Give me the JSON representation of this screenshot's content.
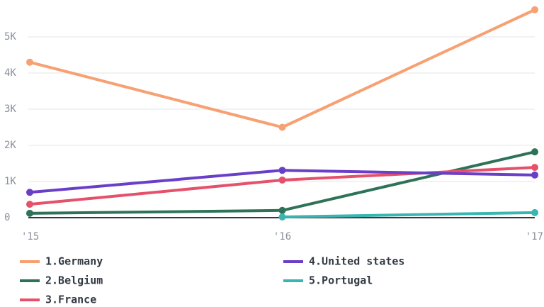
{
  "chart_data": {
    "type": "line",
    "categories": [
      "'15",
      "'16",
      "'17"
    ],
    "series": [
      {
        "name": "1.Germany",
        "color": "#f7a072",
        "values": [
          4300,
          2500,
          5750
        ]
      },
      {
        "name": "2.Belgium",
        "color": "#2e7358",
        "values": [
          120,
          200,
          1820
        ]
      },
      {
        "name": "3.France",
        "color": "#e5506a",
        "values": [
          370,
          1040,
          1390
        ]
      },
      {
        "name": "4.United states",
        "color": "#6a3fc8",
        "values": [
          700,
          1310,
          1180
        ]
      },
      {
        "name": "5.Portugal",
        "color": "#3ab5b0",
        "values": [
          null,
          20,
          140
        ]
      }
    ],
    "ylim": [
      0,
      5000
    ],
    "yticks": [
      {
        "value": 0,
        "label": "0"
      },
      {
        "value": 1000,
        "label": "1K"
      },
      {
        "value": 2000,
        "label": "2K"
      },
      {
        "value": 3000,
        "label": "3K"
      },
      {
        "value": 4000,
        "label": "4K"
      },
      {
        "value": 5000,
        "label": "5K"
      }
    ],
    "grid": true
  }
}
